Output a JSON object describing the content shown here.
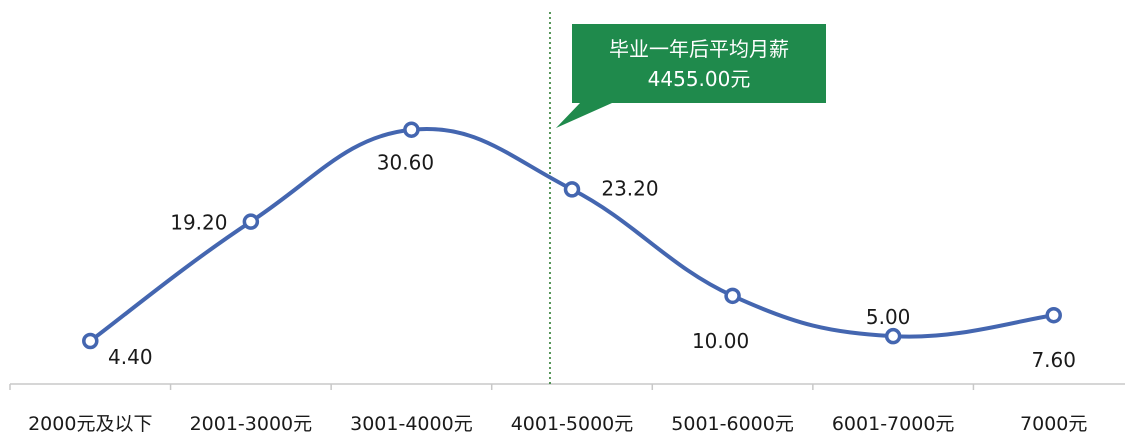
{
  "chart_data": {
    "type": "line",
    "title": "",
    "xlabel": "",
    "ylabel": "",
    "categories": [
      "2000元及以下",
      "2001-3000元",
      "3001-4000元",
      "4001-5000元",
      "5001-6000元",
      "6001-7000元",
      "7000元"
    ],
    "series": [
      {
        "values": [
          4.4,
          19.2,
          30.6,
          23.2,
          10.0,
          5.0,
          7.6
        ],
        "labels": [
          "4.40",
          "19.20",
          "30.60",
          "23.20",
          "10.00",
          "5.00",
          "7.60"
        ]
      }
    ],
    "ylim": [
      0,
      36
    ],
    "grid": false,
    "legend": "none",
    "line_smooth": true,
    "colors": {
      "line": "#4466b0",
      "marker_fill": "#ffffff",
      "callout": "#1f8a4c",
      "reference_line": "#2e7d32",
      "axis": "#c8c8c8"
    },
    "annotation": {
      "line1": "毕业一年后平均月薪",
      "line2": "4455.00元",
      "reference_value": 4455.0
    }
  }
}
